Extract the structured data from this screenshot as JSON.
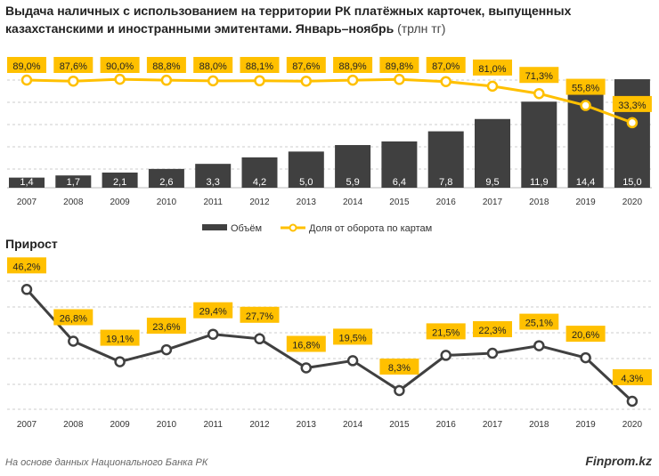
{
  "title": "Выдача наличных с использованием на территории РК платёжных карточек, выпущенных казахстанскими и иностранными эмитентами. Январь–ноябрь",
  "unit": "(трлн тг)",
  "subtitle": "Прирост",
  "footer": "На основе данных Национального Банка РК",
  "brand": "Finprom.kz",
  "colors": {
    "bar": "#404040",
    "line": "#FFC000",
    "growth_line": "#404040",
    "label_bg": "#FFC000"
  },
  "chart_data": [
    {
      "type": "bar+line",
      "categories": [
        "2007",
        "2008",
        "2009",
        "2010",
        "2011",
        "2012",
        "2013",
        "2014",
        "2015",
        "2016",
        "2017",
        "2018",
        "2019",
        "2020"
      ],
      "series": [
        {
          "name": "Объём",
          "type": "bar",
          "values": [
            1.4,
            1.7,
            2.1,
            2.6,
            3.3,
            4.2,
            5.0,
            5.9,
            6.4,
            7.8,
            9.5,
            11.9,
            14.4,
            15.0
          ],
          "labels": [
            "1,4",
            "1,7",
            "2,1",
            "2,6",
            "3,3",
            "4,2",
            "5,0",
            "5,9",
            "6,4",
            "7,8",
            "9,5",
            "11,9",
            "14,4",
            "15,0"
          ]
        },
        {
          "name": "Доля от оборота по картам",
          "type": "line",
          "values": [
            89.0,
            87.6,
            90.0,
            88.8,
            88.0,
            88.1,
            87.6,
            88.9,
            89.8,
            87.0,
            81.0,
            71.3,
            55.8,
            33.3
          ],
          "labels": [
            "89,0%",
            "87,6%",
            "90,0%",
            "88,8%",
            "88,0%",
            "88,1%",
            "87,6%",
            "88,9%",
            "89,8%",
            "87,0%",
            "81,0%",
            "71,3%",
            "55,8%",
            "33,3%"
          ]
        }
      ],
      "legend": "bottom",
      "grid": true
    },
    {
      "type": "line",
      "title": "Прирост",
      "categories": [
        "2007",
        "2008",
        "2009",
        "2010",
        "2011",
        "2012",
        "2013",
        "2014",
        "2015",
        "2016",
        "2017",
        "2018",
        "2019",
        "2020"
      ],
      "values": [
        46.2,
        26.8,
        19.1,
        23.6,
        29.4,
        27.7,
        16.8,
        19.5,
        8.3,
        21.5,
        22.3,
        25.1,
        20.6,
        4.3
      ],
      "labels": [
        "46,2%",
        "26,8%",
        "19,1%",
        "23,6%",
        "29,4%",
        "27,7%",
        "16,8%",
        "19,5%",
        "8,3%",
        "21,5%",
        "22,3%",
        "25,1%",
        "20,6%",
        "4,3%"
      ],
      "grid": true
    }
  ]
}
